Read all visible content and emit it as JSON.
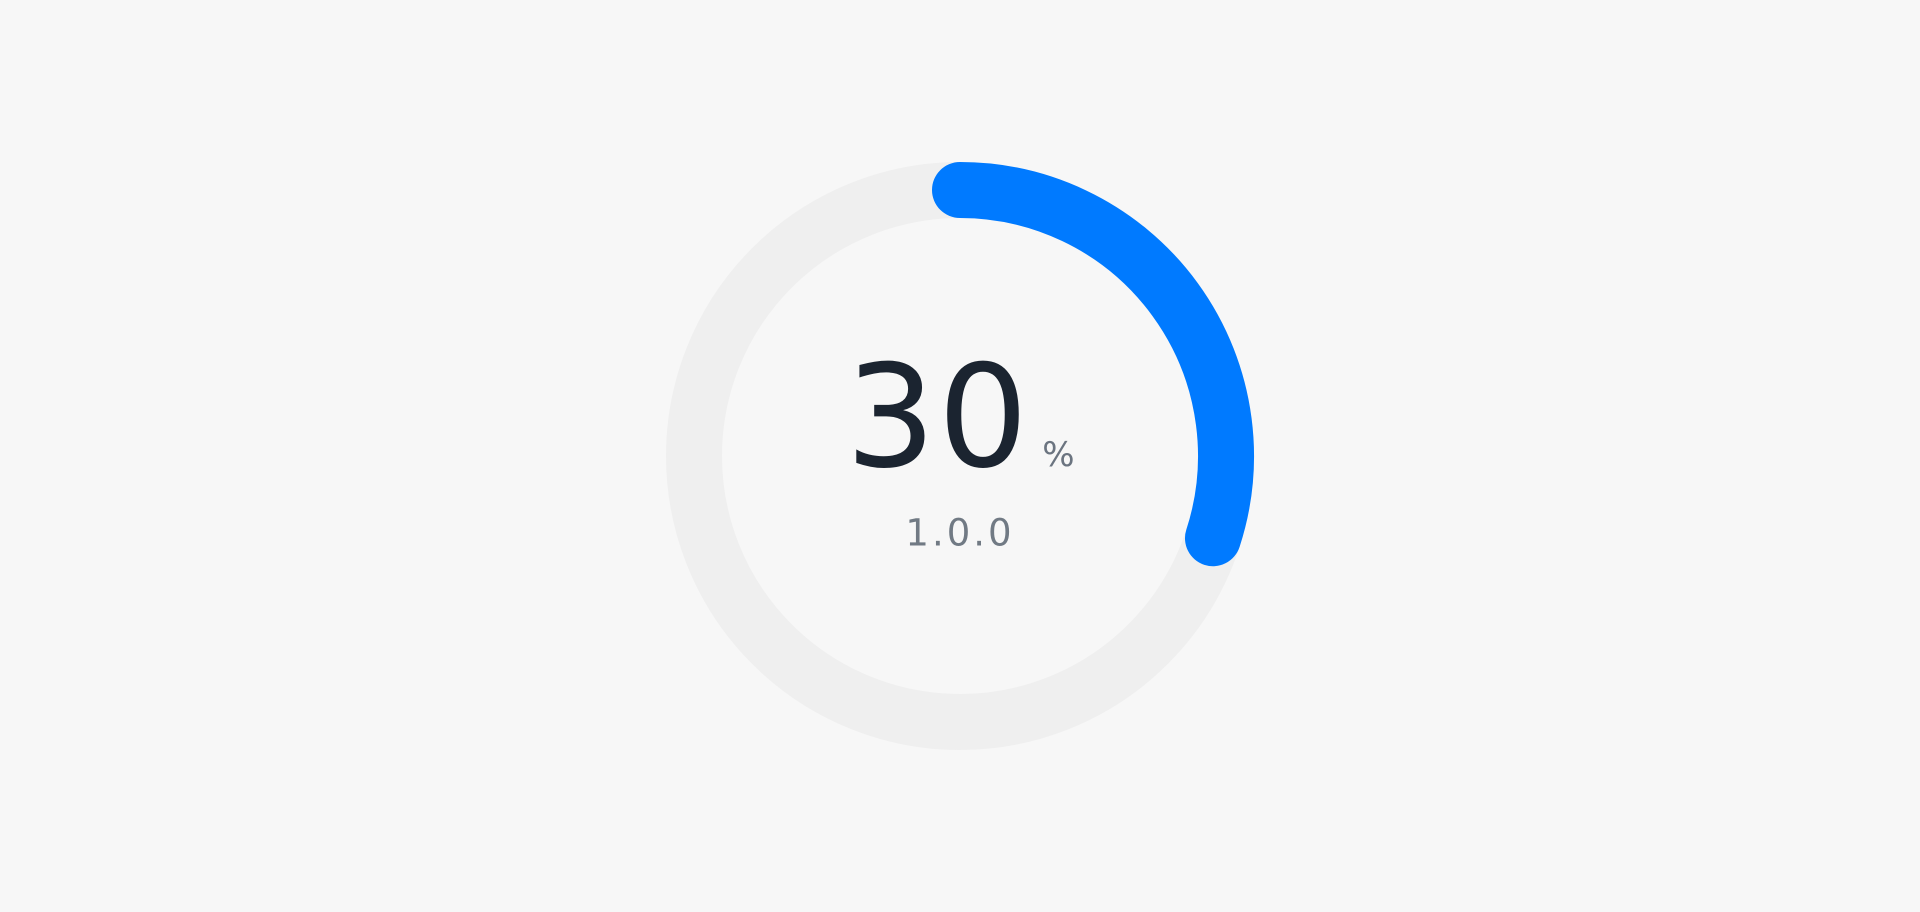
{
  "progress": {
    "value": 30,
    "fraction": 0.3,
    "value_text": "30",
    "unit": "%",
    "version": "1.0.0"
  },
  "colors": {
    "background": "#f7f7f7",
    "track": "#efefef",
    "progress": "#007aff",
    "value_text": "#1b2430",
    "secondary_text": "#717a84"
  }
}
